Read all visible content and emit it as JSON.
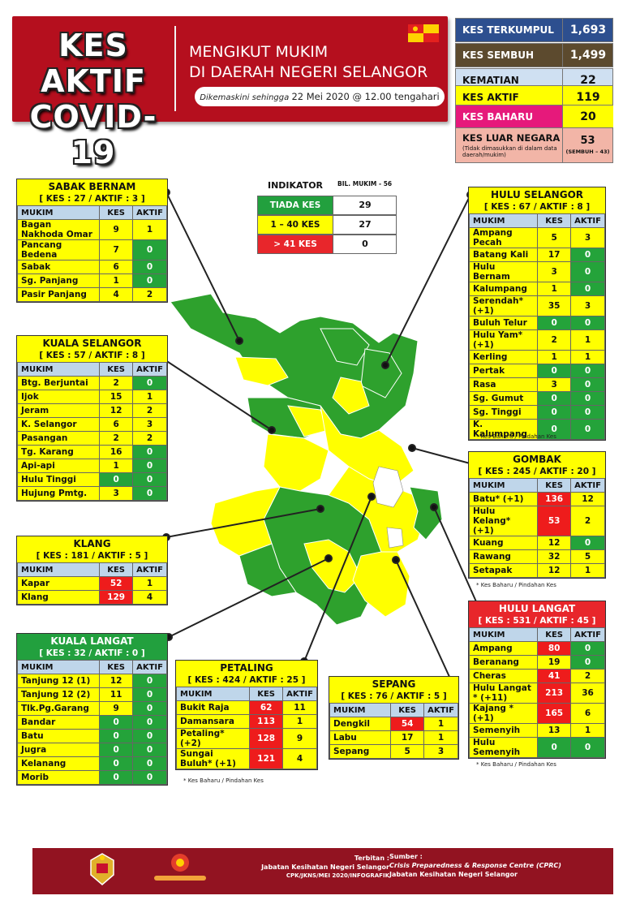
{
  "header": {
    "title_line1": "KES AKTIF",
    "title_line2": "COVID-19",
    "subtitle_line1": "MENGIKUT MUKIM",
    "subtitle_line2": "DI DAERAH NEGERI SELANGOR",
    "update_prefix": "Dikemaskini sehingga",
    "update_date": "22 Mei 2020 @ 12.00 tengahari"
  },
  "summary": {
    "terkumpul": {
      "label": "KES TERKUMPUL",
      "value": "1,693",
      "color": "#2d4f8f"
    },
    "sembuh": {
      "label": "KES SEMBUH",
      "value": "1,499",
      "color": "#5c4a2e"
    },
    "kematian": {
      "label": "KEMATIAN",
      "value": "22",
      "color": "#cfe0f2"
    },
    "aktif": {
      "label": "KES AKTIF",
      "value": "119",
      "color": "#ffff00"
    },
    "baharu": {
      "label": "KES BAHARU",
      "value": "20",
      "color": "#e6197b"
    },
    "luar": {
      "label": "KES LUAR NEGARA",
      "note": "(Tidak dimasukkan di dalam data daerah/mukim)",
      "value": "53",
      "sub": "(SEMBUH – 43)"
    }
  },
  "indicator": {
    "title": "INDIKATOR",
    "bil": "BIL. MUKIM - 56",
    "rows": [
      {
        "label": "TIADA KES",
        "value": "29",
        "color": "#22a03e"
      },
      {
        "label": "1 – 40 KES",
        "value": "27",
        "color": "#ffff00"
      },
      {
        "label": "> 41 KES",
        "value": "0",
        "color": "#e8262b"
      }
    ]
  },
  "col": {
    "mukim": "MUKIM",
    "kes": "KES",
    "aktif": "AKTIF"
  },
  "districts": {
    "sabak": {
      "name": "SABAK BERNAM",
      "stats": "[ KES : 27 / AKTIF : 3 ]",
      "rows": [
        {
          "m": "Bagan Nakhoda Omar",
          "k": "9",
          "a": "1",
          "kc": "y",
          "ac": "y"
        },
        {
          "m": "Pancang Bedena",
          "k": "7",
          "a": "0",
          "kc": "y",
          "ac": "g"
        },
        {
          "m": "Sabak",
          "k": "6",
          "a": "0",
          "kc": "y",
          "ac": "g"
        },
        {
          "m": "Sg. Panjang",
          "k": "1",
          "a": "0",
          "kc": "y",
          "ac": "g"
        },
        {
          "m": "Pasir Panjang",
          "k": "4",
          "a": "2",
          "kc": "y",
          "ac": "y"
        }
      ]
    },
    "kselangor": {
      "name": "KUALA SELANGOR",
      "stats": "[ KES : 57 / AKTIF : 8 ]",
      "rows": [
        {
          "m": "Btg. Berjuntai",
          "k": "2",
          "a": "0",
          "kc": "y",
          "ac": "g"
        },
        {
          "m": "Ijok",
          "k": "15",
          "a": "1",
          "kc": "y",
          "ac": "y"
        },
        {
          "m": "Jeram",
          "k": "12",
          "a": "2",
          "kc": "y",
          "ac": "y"
        },
        {
          "m": "K. Selangor",
          "k": "6",
          "a": "3",
          "kc": "y",
          "ac": "y"
        },
        {
          "m": "Pasangan",
          "k": "2",
          "a": "2",
          "kc": "y",
          "ac": "y"
        },
        {
          "m": "Tg. Karang",
          "k": "16",
          "a": "0",
          "kc": "y",
          "ac": "g"
        },
        {
          "m": "Api-api",
          "k": "1",
          "a": "0",
          "kc": "y",
          "ac": "g"
        },
        {
          "m": "Hulu Tinggi",
          "k": "0",
          "a": "0",
          "kc": "g",
          "ac": "g"
        },
        {
          "m": "Hujung Pmtg.",
          "k": "3",
          "a": "0",
          "kc": "y",
          "ac": "g"
        }
      ]
    },
    "klang": {
      "name": "KLANG",
      "stats": "[ KES : 181 / AKTIF : 5 ]",
      "rows": [
        {
          "m": "Kapar",
          "k": "52",
          "a": "1",
          "kc": "r",
          "ac": "y"
        },
        {
          "m": "Klang",
          "k": "129",
          "a": "4",
          "kc": "r",
          "ac": "y"
        }
      ]
    },
    "klangat": {
      "name": "KUALA LANGAT",
      "stats": "[ KES : 32 / AKTIF : 0 ]",
      "rows": [
        {
          "m": "Tanjung 12 (1)",
          "k": "12",
          "a": "0",
          "kc": "y",
          "ac": "g"
        },
        {
          "m": "Tanjung 12 (2)",
          "k": "11",
          "a": "0",
          "kc": "y",
          "ac": "g"
        },
        {
          "m": "Tlk.Pg.Garang",
          "k": "9",
          "a": "0",
          "kc": "y",
          "ac": "g"
        },
        {
          "m": "Bandar",
          "k": "0",
          "a": "0",
          "kc": "g",
          "ac": "g"
        },
        {
          "m": "Batu",
          "k": "0",
          "a": "0",
          "kc": "g",
          "ac": "g"
        },
        {
          "m": "Jugra",
          "k": "0",
          "a": "0",
          "kc": "g",
          "ac": "g"
        },
        {
          "m": "Kelanang",
          "k": "0",
          "a": "0",
          "kc": "g",
          "ac": "g"
        },
        {
          "m": "Morib",
          "k": "0",
          "a": "0",
          "kc": "g",
          "ac": "g"
        }
      ]
    },
    "petaling": {
      "name": "PETALING",
      "stats": "[ KES : 424 / AKTIF : 25 ]",
      "rows": [
        {
          "m": "Bukit Raja",
          "k": "62",
          "a": "11",
          "kc": "r",
          "ac": "y"
        },
        {
          "m": "Damansara",
          "k": "113",
          "a": "1",
          "kc": "r",
          "ac": "y"
        },
        {
          "m": "Petaling* (+2)",
          "k": "128",
          "a": "9",
          "kc": "r",
          "ac": "y"
        },
        {
          "m": "Sungai Buluh* (+1)",
          "k": "121",
          "a": "4",
          "kc": "r",
          "ac": "y"
        }
      ],
      "note": "* Kes Baharu / Pindahan Kes"
    },
    "sepang": {
      "name": "SEPANG",
      "stats": "[ KES : 76 / AKTIF : 5 ]",
      "rows": [
        {
          "m": "Dengkil",
          "k": "54",
          "a": "1",
          "kc": "r",
          "ac": "y"
        },
        {
          "m": "Labu",
          "k": "17",
          "a": "1",
          "kc": "y",
          "ac": "y"
        },
        {
          "m": "Sepang",
          "k": "5",
          "a": "3",
          "kc": "y",
          "ac": "y"
        }
      ]
    },
    "hselangor": {
      "name": "HULU SELANGOR",
      "stats": "[ KES : 67 / AKTIF : 8 ]",
      "rows": [
        {
          "m": "Ampang Pecah",
          "k": "5",
          "a": "3",
          "kc": "y",
          "ac": "y"
        },
        {
          "m": "Batang Kali",
          "k": "17",
          "a": "0",
          "kc": "y",
          "ac": "g"
        },
        {
          "m": "Hulu Bernam",
          "k": "3",
          "a": "0",
          "kc": "y",
          "ac": "g"
        },
        {
          "m": "Kalumpang",
          "k": "1",
          "a": "0",
          "kc": "y",
          "ac": "g"
        },
        {
          "m": "Serendah* (+1)",
          "k": "35",
          "a": "3",
          "kc": "y",
          "ac": "y"
        },
        {
          "m": "Buluh Telur",
          "k": "0",
          "a": "0",
          "kc": "g",
          "ac": "g"
        },
        {
          "m": "Hulu Yam* (+1)",
          "k": "2",
          "a": "1",
          "kc": "y",
          "ac": "y"
        },
        {
          "m": "Kerling",
          "k": "1",
          "a": "1",
          "kc": "y",
          "ac": "y"
        },
        {
          "m": "Pertak",
          "k": "0",
          "a": "0",
          "kc": "g",
          "ac": "g"
        },
        {
          "m": "Rasa",
          "k": "3",
          "a": "0",
          "kc": "y",
          "ac": "g"
        },
        {
          "m": "Sg. Gumut",
          "k": "0",
          "a": "0",
          "kc": "g",
          "ac": "g"
        },
        {
          "m": "Sg. Tinggi",
          "k": "0",
          "a": "0",
          "kc": "g",
          "ac": "g"
        },
        {
          "m": "K. Kalumpang",
          "k": "0",
          "a": "0",
          "kc": "g",
          "ac": "g"
        }
      ],
      "note": "* Kes Baharu / Pindahan Kes"
    },
    "gombak": {
      "name": "GOMBAK",
      "stats": "[ KES : 245 / AKTIF : 20 ]",
      "rows": [
        {
          "m": "Batu* (+1)",
          "k": "136",
          "a": "12",
          "kc": "r",
          "ac": "y"
        },
        {
          "m": "Hulu Kelang* (+1)",
          "k": "53",
          "a": "2",
          "kc": "r",
          "ac": "y"
        },
        {
          "m": "Kuang",
          "k": "12",
          "a": "0",
          "kc": "y",
          "ac": "g"
        },
        {
          "m": "Rawang",
          "k": "32",
          "a": "5",
          "kc": "y",
          "ac": "y"
        },
        {
          "m": "Setapak",
          "k": "12",
          "a": "1",
          "kc": "y",
          "ac": "y"
        }
      ],
      "note": "* Kes Baharu / Pindahan Kes"
    },
    "hlangat": {
      "name": "HULU LANGAT",
      "stats": "[ KES : 531 / AKTIF : 45 ]",
      "rows": [
        {
          "m": "Ampang",
          "k": "80",
          "a": "0",
          "kc": "r",
          "ac": "g"
        },
        {
          "m": "Beranang",
          "k": "19",
          "a": "0",
          "kc": "y",
          "ac": "g"
        },
        {
          "m": "Cheras",
          "k": "41",
          "a": "2",
          "kc": "r",
          "ac": "y"
        },
        {
          "m": "Hulu Langat * (+11)",
          "k": "213",
          "a": "36",
          "kc": "r",
          "ac": "y"
        },
        {
          "m": "Kajang * (+1)",
          "k": "165",
          "a": "6",
          "kc": "r",
          "ac": "y"
        },
        {
          "m": "Semenyih",
          "k": "13",
          "a": "1",
          "kc": "y",
          "ac": "y"
        },
        {
          "m": "Hulu Semenyih",
          "k": "0",
          "a": "0",
          "kc": "g",
          "ac": "g"
        }
      ],
      "note": "* Kes Baharu / Pindahan Kes"
    }
  },
  "footer": {
    "terbitan_label": "Terbitan :",
    "terbitan_org": "Jabatan Kesihatan Negeri Selangor",
    "terbitan_ref": "CPK/JKNS/MEI 2020/INFOGRAFIK",
    "sumber_label": "Sumber :",
    "sumber_org1": "Crisis Preparedness & Response Centre (CPRC)",
    "sumber_org2": "Jabatan Kesihatan Negeri Selangor"
  }
}
